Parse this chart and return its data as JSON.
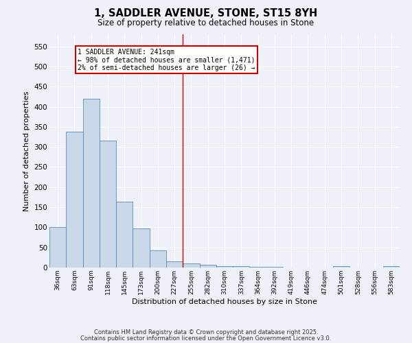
{
  "title": "1, SADDLER AVENUE, STONE, ST15 8YH",
  "subtitle": "Size of property relative to detached houses in Stone",
  "xlabel": "Distribution of detached houses by size in Stone",
  "ylabel": "Number of detached properties",
  "bar_color": "#c8d8e8",
  "bar_edge_color": "#5a8ab0",
  "bg_color": "#eef2f8",
  "grid_color": "#ffffff",
  "categories": [
    "36sqm",
    "63sqm",
    "91sqm",
    "118sqm",
    "145sqm",
    "173sqm",
    "200sqm",
    "227sqm",
    "255sqm",
    "282sqm",
    "310sqm",
    "337sqm",
    "364sqm",
    "392sqm",
    "419sqm",
    "446sqm",
    "474sqm",
    "501sqm",
    "528sqm",
    "556sqm",
    "583sqm"
  ],
  "values": [
    100,
    337,
    420,
    315,
    163,
    97,
    42,
    16,
    10,
    6,
    4,
    4,
    1,
    1,
    0,
    0,
    0,
    4,
    0,
    0,
    4
  ],
  "vline_x": 7.5,
  "vline_color": "#cc0000",
  "annotation_text": "1 SADDLER AVENUE: 241sqm\n← 98% of detached houses are smaller (1,471)\n2% of semi-detached houses are larger (26) →",
  "ylim": [
    0,
    580
  ],
  "yticks": [
    0,
    50,
    100,
    150,
    200,
    250,
    300,
    350,
    400,
    450,
    500,
    550
  ],
  "footer1": "Contains HM Land Registry data © Crown copyright and database right 2025.",
  "footer2": "Contains public sector information licensed under the Open Government Licence v3.0."
}
